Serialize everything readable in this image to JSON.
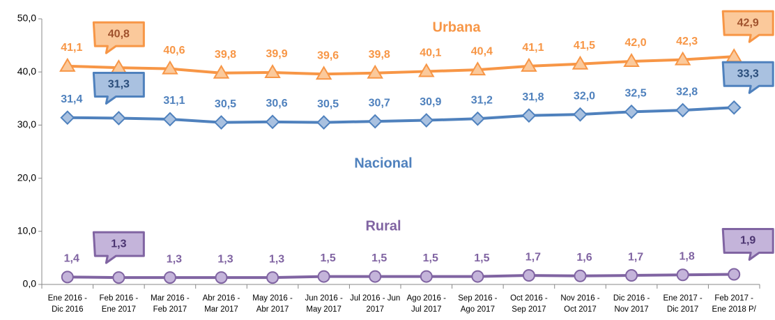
{
  "chart_data": {
    "type": "line",
    "categories": [
      [
        "Ene 2016 -",
        "Dic 2016"
      ],
      [
        "Feb 2016 -",
        "Ene 2017"
      ],
      [
        "Mar 2016 -",
        "Feb 2017"
      ],
      [
        "Abr 2016 -",
        "Mar 2017"
      ],
      [
        "May 2016 -",
        "Abr 2017"
      ],
      [
        "Jun 2016 -",
        "May 2017"
      ],
      [
        "Jul 2016 - Jun",
        "2017"
      ],
      [
        "Ago 2016 -",
        "Jul 2017"
      ],
      [
        "Sep 2016 -",
        "Ago 2017"
      ],
      [
        "Oct 2016 -",
        "Sep 2017"
      ],
      [
        "Nov 2016 -",
        "Oct 2017"
      ],
      [
        "Dic 2016 -",
        "Nov 2017"
      ],
      [
        "Ene 2017 -",
        "Dic 2017"
      ],
      [
        "Feb 2017 -",
        "Ene 2018 P/"
      ]
    ],
    "series": [
      {
        "name": "Urbana",
        "color": "#f79646",
        "marker": "triangle",
        "values": [
          41.1,
          40.8,
          40.6,
          39.8,
          39.9,
          39.6,
          39.8,
          40.1,
          40.4,
          41.1,
          41.5,
          42.0,
          42.3,
          42.9
        ],
        "value_labels": [
          "41,1",
          "40,8",
          "40,6",
          "39,8",
          "39,9",
          "39,6",
          "39,8",
          "40,1",
          "40,4",
          "41,1",
          "41,5",
          "42,0",
          "42,3",
          "42,9"
        ]
      },
      {
        "name": "Nacional",
        "color": "#4f81bd",
        "marker": "diamond",
        "values": [
          31.4,
          31.3,
          31.1,
          30.5,
          30.6,
          30.5,
          30.7,
          30.9,
          31.2,
          31.8,
          32.0,
          32.5,
          32.8,
          33.3
        ],
        "value_labels": [
          "31,4",
          "31,3",
          "31,1",
          "30,5",
          "30,6",
          "30,5",
          "30,7",
          "30,9",
          "31,2",
          "31,8",
          "32,0",
          "32,5",
          "32,8",
          "33,3"
        ]
      },
      {
        "name": "Rural",
        "color": "#8064a2",
        "marker": "circle",
        "values": [
          1.4,
          1.3,
          1.3,
          1.3,
          1.3,
          1.5,
          1.5,
          1.5,
          1.5,
          1.7,
          1.6,
          1.7,
          1.8,
          1.9
        ],
        "value_labels": [
          "1,4",
          "1,3",
          "1,3",
          "1,3",
          "1,3",
          "1,5",
          "1,5",
          "1,5",
          "1,5",
          "1,7",
          "1,6",
          "1,7",
          "1,8",
          "1,9"
        ]
      }
    ],
    "ylim": [
      0,
      50
    ],
    "yticks": [
      {
        "value": 0,
        "label": "0,0"
      },
      {
        "value": 10,
        "label": "10,0"
      },
      {
        "value": 20,
        "label": "20,0"
      },
      {
        "value": 30,
        "label": "30,0"
      },
      {
        "value": 40,
        "label": "40,0"
      },
      {
        "value": 50,
        "label": "50,0"
      }
    ],
    "grid": false
  }
}
